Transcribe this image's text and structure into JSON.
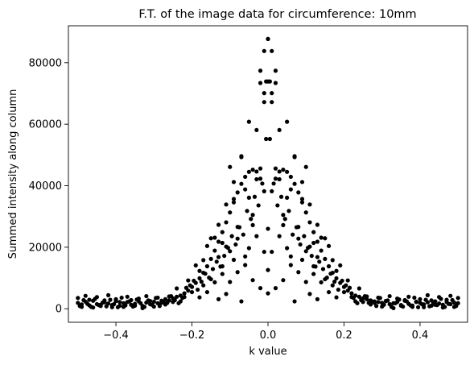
{
  "chart_data": {
    "type": "scatter",
    "title": "F.T. of the image data for circumference: 10mm",
    "xlabel": "k value",
    "ylabel": "Summed intensity along column",
    "xlim": [
      -0.525,
      0.525
    ],
    "ylim": [
      -4400,
      92000
    ],
    "xticks": [
      -0.4,
      -0.2,
      0.0,
      0.2,
      0.4
    ],
    "xtick_labels": [
      "−0.4",
      "−0.2",
      "0.0",
      "0.2",
      "0.4"
    ],
    "yticks": [
      0,
      20000,
      40000,
      60000,
      80000
    ],
    "ytick_labels": [
      "0",
      "20000",
      "40000",
      "60000",
      "80000"
    ],
    "grid": false,
    "legend": "none",
    "marker_color": "#000000",
    "series": [
      {
        "x": [
          -0.5,
          -0.49,
          -0.48,
          -0.47,
          -0.46,
          -0.45,
          -0.44,
          -0.43,
          -0.42,
          -0.41,
          -0.4,
          -0.39,
          -0.38,
          -0.37,
          -0.36,
          -0.35,
          -0.34,
          -0.33,
          -0.32,
          -0.31,
          -0.3,
          -0.29,
          -0.28,
          -0.27,
          -0.26,
          -0.25,
          -0.24,
          -0.23,
          -0.22,
          -0.21,
          -0.2,
          -0.19,
          -0.18,
          -0.17,
          -0.16,
          -0.15,
          -0.14,
          -0.13,
          -0.12,
          -0.11,
          -0.1,
          -0.09,
          -0.08,
          -0.07,
          -0.06,
          -0.05,
          -0.04,
          -0.03,
          -0.02,
          -0.01,
          0.0,
          0.01,
          0.02,
          0.03,
          0.04,
          0.05,
          0.06,
          0.07,
          0.08,
          0.09,
          0.1,
          0.11,
          0.12,
          0.13,
          0.14,
          0.15,
          0.16,
          0.17,
          0.18,
          0.19,
          0.2,
          0.21,
          0.22,
          0.23,
          0.24,
          0.25,
          0.26,
          0.27,
          0.28,
          0.29,
          0.3,
          0.31,
          0.32,
          0.33,
          0.34,
          0.35,
          0.36,
          0.37,
          0.38,
          0.39,
          0.4,
          0.41,
          0.42,
          0.43,
          0.44,
          0.45,
          0.46,
          0.47,
          0.48,
          0.49,
          0.5,
          -0.495,
          -0.485,
          -0.475,
          -0.465,
          -0.455,
          -0.445,
          -0.435,
          -0.425,
          -0.415,
          -0.405,
          -0.395,
          -0.385,
          -0.375,
          -0.365,
          -0.355,
          -0.345,
          -0.335,
          -0.325,
          -0.315,
          -0.305,
          -0.295,
          -0.285,
          -0.275,
          -0.265,
          -0.255,
          -0.245,
          -0.235,
          -0.225,
          -0.215,
          -0.205,
          -0.195,
          -0.185,
          -0.175,
          -0.165,
          -0.155,
          -0.145,
          -0.135,
          -0.125,
          -0.115,
          -0.105,
          -0.095,
          -0.085,
          -0.075,
          -0.065,
          -0.055,
          -0.045,
          -0.035,
          -0.025,
          -0.015,
          -0.005,
          0.005,
          0.015,
          0.025,
          0.035,
          0.045,
          0.055,
          0.065,
          0.075,
          0.085,
          0.095,
          0.105,
          0.115,
          0.125,
          0.135,
          0.145,
          0.155,
          0.165,
          0.175,
          0.185,
          0.195,
          0.205,
          0.215,
          0.225,
          0.235,
          0.245,
          0.255,
          0.265,
          0.275,
          0.285,
          0.295,
          0.305,
          0.315,
          0.325,
          0.335,
          0.345,
          0.355,
          0.365,
          0.375,
          0.385,
          0.395,
          0.405,
          0.415,
          0.425,
          0.435,
          0.445,
          0.455,
          0.465,
          0.475,
          0.485,
          0.495,
          -0.5,
          -0.49,
          -0.48,
          -0.47,
          -0.46,
          -0.45,
          -0.44,
          -0.43,
          -0.42,
          -0.41,
          -0.4,
          -0.39,
          -0.38,
          -0.37,
          -0.36,
          -0.35,
          -0.34,
          -0.33,
          -0.32,
          -0.31,
          -0.3,
          -0.29,
          -0.28,
          -0.27,
          -0.26,
          -0.25,
          -0.24,
          -0.23,
          -0.22,
          -0.21,
          -0.2,
          -0.19,
          -0.18,
          -0.17,
          -0.16,
          -0.15,
          -0.14,
          -0.13,
          -0.12,
          -0.11,
          -0.1,
          -0.09,
          -0.08,
          -0.07,
          -0.06,
          -0.05,
          -0.04,
          -0.03,
          -0.02,
          -0.01,
          0.0,
          0.01,
          0.02,
          0.03,
          0.04,
          0.05,
          0.06,
          0.07,
          0.08,
          0.09,
          0.1,
          0.11,
          0.12,
          0.13,
          0.14,
          0.15,
          0.16,
          0.17,
          0.18,
          0.19,
          0.2,
          0.21,
          0.22,
          0.23,
          0.24,
          0.25,
          0.26,
          0.27,
          0.28,
          0.29,
          0.3,
          0.31,
          0.32,
          0.33,
          0.34,
          0.35,
          0.36,
          0.37,
          0.38,
          0.39,
          0.4,
          0.41,
          0.42,
          0.43,
          0.44,
          0.45,
          0.46,
          0.47,
          0.48,
          0.49,
          0.5,
          -0.18,
          -0.17,
          -0.16,
          -0.15,
          -0.14,
          -0.13,
          -0.12,
          -0.11,
          -0.1,
          -0.09,
          -0.08,
          -0.07,
          -0.06,
          -0.05,
          -0.04,
          -0.03,
          -0.02,
          -0.01,
          0.0,
          0.01,
          0.02,
          0.03,
          0.04,
          0.05,
          0.06,
          0.07,
          0.08,
          0.09,
          0.1,
          0.11,
          0.12,
          0.13,
          0.14,
          0.15,
          0.16,
          0.17,
          0.18,
          -0.13,
          -0.12,
          -0.11,
          -0.1,
          -0.09,
          -0.08,
          -0.07,
          -0.06,
          -0.05,
          -0.04,
          -0.03,
          -0.02,
          -0.01,
          0.0,
          0.01,
          0.02,
          0.03,
          0.04,
          0.05,
          0.06,
          0.07,
          0.08,
          0.09,
          0.1,
          0.11,
          0.12,
          0.13,
          -0.02,
          0.02,
          -0.01,
          0.01,
          0.0,
          0.0,
          -0.005,
          0.005
        ],
        "y": [
          1900,
          1400,
          2300,
          1100,
          2600,
          1500,
          900,
          2100,
          1700,
          1200,
          2500,
          1000,
          1800,
          2200,
          1300,
          1600,
          2400,
          900,
          2000,
          1500,
          2300,
          1800,
          2600,
          3100,
          2700,
          3400,
          3900,
          4300,
          5000,
          5900,
          7100,
          8400,
          9900,
          11700,
          13800,
          16200,
          18900,
          21800,
          24900,
          28100,
          31300,
          34600,
          37800,
          40600,
          42900,
          44500,
          45200,
          44600,
          42300,
          38200,
          26000,
          38200,
          42300,
          44600,
          45200,
          44500,
          42900,
          40600,
          37800,
          34600,
          31300,
          28100,
          24900,
          21800,
          18900,
          16200,
          13800,
          11700,
          9900,
          8400,
          7100,
          5900,
          5000,
          4300,
          3900,
          3400,
          3100,
          2700,
          2400,
          2200,
          1900,
          2500,
          1500,
          1800,
          2200,
          1200,
          2600,
          1600,
          1000,
          2300,
          1900,
          1400,
          2100,
          1000,
          2400,
          1700,
          1300,
          2200,
          1500,
          2000,
          1800,
          900,
          2800,
          1600,
          600,
          3200,
          1200,
          2000,
          800,
          2900,
          1500,
          500,
          3600,
          1100,
          2400,
          700,
          3000,
          1800,
          600,
          2700,
          1300,
          3500,
          900,
          2300,
          1900,
          4100,
          2800,
          1800,
          3500,
          6800,
          7600,
          9100,
          6200,
          8800,
          11400,
          10100,
          12900,
          15300,
          13700,
          17200,
          19800,
          23600,
          20900,
          26500,
          24100,
          31800,
          29200,
          36400,
          33600,
          40700,
          55200,
          55200,
          40700,
          33600,
          36400,
          29200,
          31800,
          24100,
          26500,
          20900,
          23600,
          19800,
          17200,
          13700,
          15300,
          12900,
          10100,
          11400,
          8800,
          6200,
          9100,
          7600,
          6800,
          3500,
          1800,
          2800,
          4100,
          1900,
          2300,
          900,
          3500,
          1300,
          2700,
          600,
          1800,
          3000,
          700,
          2400,
          1100,
          3600,
          500,
          1500,
          2900,
          800,
          2000,
          1200,
          3200,
          600,
          1600,
          2800,
          900,
          3500,
          600,
          4200,
          2900,
          400,
          3800,
          1300,
          2700,
          4400,
          500,
          3100,
          2200,
          600,
          3900,
          2800,
          1000,
          3300,
          200,
          4100,
          2500,
          700,
          3600,
          1900,
          1400,
          4000,
          2200,
          6600,
          2400,
          3800,
          9200,
          5400,
          14100,
          12300,
          7600,
          20400,
          9600,
          23100,
          16800,
          11300,
          20200,
          46100,
          35700,
          22800,
          49600,
          38800,
          60800,
          27200,
          42100,
          73400,
          67200,
          5000,
          67200,
          73400,
          42100,
          27200,
          60800,
          38800,
          49600,
          22800,
          35700,
          46100,
          20200,
          11300,
          16800,
          23100,
          9600,
          20400,
          7600,
          12300,
          14100,
          5400,
          9200,
          3800,
          2400,
          6600,
          2200,
          4000,
          1400,
          1900,
          3600,
          700,
          2500,
          4100,
          200,
          3300,
          1000,
          2800,
          3900,
          600,
          2200,
          3100,
          500,
          4400,
          2700,
          1300,
          3800,
          400,
          2900,
          4200,
          600,
          3500,
          3700,
          15800,
          5400,
          22900,
          8600,
          27300,
          13800,
          33900,
          18700,
          41200,
          26600,
          49300,
          17000,
          36100,
          30500,
          58100,
          45600,
          70100,
          87700,
          70100,
          45600,
          58100,
          30500,
          36100,
          17000,
          49300,
          26600,
          41200,
          18700,
          33900,
          13800,
          27300,
          8600,
          22900,
          5400,
          15800,
          3700,
          3100,
          21400,
          4800,
          8700,
          15900,
          11900,
          2400,
          14200,
          19700,
          9300,
          23600,
          6700,
          18500,
          12600,
          18500,
          6700,
          23600,
          9300,
          19700,
          14200,
          2400,
          11900,
          15900,
          8700,
          4800,
          21400,
          3100,
          77400,
          77400,
          83800,
          83800,
          87700,
          73900,
          73900,
          73900
        ]
      }
    ]
  }
}
